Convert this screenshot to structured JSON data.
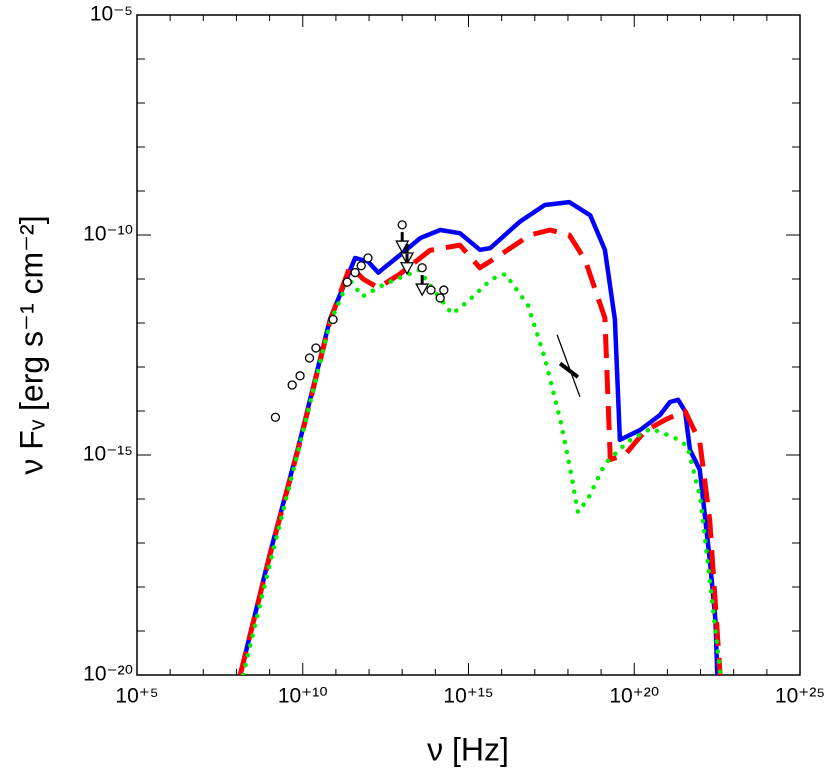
{
  "chart_data": {
    "type": "line",
    "xlabel": "ν [Hz]",
    "ylabel": "ν Fᵥ [erg s⁻¹ cm⁻²]",
    "xscale": "log",
    "yscale": "log",
    "xlim": [
      100000.0,
      1e+25
    ],
    "ylim": [
      1e-20,
      1e-05
    ],
    "xticks": [
      {
        "value": 100000.0,
        "label": "10⁺⁵"
      },
      {
        "value": 10000000000.0,
        "label": "10⁺¹⁰"
      },
      {
        "value": 1000000000000000.0,
        "label": "10⁺¹⁵"
      },
      {
        "value": 1e+20,
        "label": "10⁺²⁰"
      },
      {
        "value": 1e+25,
        "label": "10⁺²⁵"
      }
    ],
    "yticks": [
      {
        "value": 1e-20,
        "label": "10⁻²⁰"
      },
      {
        "value": 1e-15,
        "label": "10⁻¹⁵"
      },
      {
        "value": 1e-10,
        "label": "10⁻¹⁰"
      },
      {
        "value": 1e-05,
        "label": "10⁻⁵"
      }
    ],
    "xminorticks": [
      1000000.0,
      10000000.0,
      100000000.0,
      1000000000.0,
      100000000000.0,
      1000000000000.0,
      10000000000000.0,
      100000000000000.0,
      1e+16,
      1e+17,
      1e+18,
      1e+19,
      1e+21,
      1e+22,
      1e+23,
      1e+24
    ],
    "yminorticks": [
      1e-19,
      1e-18,
      1e-17,
      1e-16,
      1e-14,
      1e-13,
      1e-12,
      1e-11,
      1e-09,
      1e-08,
      1e-07,
      1e-06
    ],
    "series": [
      {
        "color": "#0000ff",
        "style": "solid",
        "x": [
          130000000.0,
          1000000000.0,
          8300000000.0,
          66000000000.0,
          380000000000.0,
          930000000000.0,
          1900000000000.0,
          8500000000000.0,
          35000000000000.0,
          140000000000000.0,
          550000000000000.0,
          2200000000000000.0,
          4500000000000000.0,
          3.5e+16,
          2e+17,
          1.1e+18,
          4.7e+18,
          1.3e+19,
          2.6e+19,
          3.7e+19,
          1.5e+20,
          6e+20,
          1.2e+21,
          2.1e+21,
          3.4e+21,
          4.8e+21,
          9.5e+21,
          1.9e+22,
          2.8e+22,
          3.2e+22
        ],
        "values": [
          1e-20,
          5.4e-18,
          2.2e-15,
          1.2e-12,
          3e-11,
          2.5e-11,
          1.4e-11,
          3.5e-11,
          8.5e-11,
          1.3e-10,
          1.1e-10,
          4.6e-11,
          5e-11,
          2e-10,
          4.8e-10,
          5.6e-10,
          2.8e-10,
          4.6e-11,
          1.2e-12,
          2.2e-15,
          3.7e-15,
          8.1e-15,
          1.6e-14,
          1.8e-14,
          1e-14,
          1.3e-15,
          4.6e-16,
          4.1e-18,
          1.8e-19,
          1e-20
        ]
      },
      {
        "color": "#ff0000",
        "style": "dashed",
        "x": [
          130000000.0,
          1000000000.0,
          8300000000.0,
          66000000000.0,
          270000000000.0,
          660000000000.0,
          1900000000000.0,
          8500000000000.0,
          69000000000000.0,
          550000000000000.0,
          2200000000000000.0,
          8900000000000000.0,
          7.1e+16,
          2.9e+17,
          1.1e+18,
          3.3e+18,
          1.3e+19,
          1.9e+19,
          5.2e+19,
          2.1e+20,
          8.5e+20,
          3.4e+21,
          9.5e+21,
          1.9e+22,
          3.9e+22
        ],
        "values": [
          1e-20,
          5e-18,
          2e-15,
          1.1e-12,
          2e-11,
          1e-11,
          6.3e-12,
          1.3e-11,
          4.5e-11,
          5.9e-11,
          1.8e-11,
          3.5e-11,
          1e-10,
          1.3e-10,
          1e-10,
          2.7e-11,
          1.3e-12,
          7.9e-16,
          1e-15,
          3.5e-15,
          6.3e-15,
          1e-14,
          2e-15,
          3.2e-17,
          1e-20
        ]
      },
      {
        "color": "#00ee00",
        "style": "dotted",
        "x": [
          160000000.0,
          1000000000.0,
          7900000000.0,
          66000000000.0,
          250000000000.0,
          630000000000.0,
          3200000000000.0,
          32000000000000.0,
          100000000000000.0,
          320000000000000.0,
          1000000000000000.0,
          5000000000000000.0,
          1.3e+16,
          6.3e+16,
          2e+17,
          6.3e+17,
          1.3e+18,
          2e+18,
          4e+18,
          1.3e+19,
          6.3e+19,
          3.2e+20,
          1.6e+21,
          4e+21,
          1e+22,
          2e+22,
          4e+22
        ],
        "values": [
          1e-20,
          3.2e-18,
          1.6e-15,
          1e-12,
          1e-11,
          4e-12,
          7.9e-12,
          1.6e-11,
          5e-12,
          1.6e-12,
          3.2e-12,
          1e-11,
          1.3e-11,
          2.5e-12,
          1.6e-13,
          5e-15,
          3.2e-16,
          5e-17,
          1e-16,
          6.3e-16,
          2e-15,
          4e-15,
          2.5e-15,
          1.6e-15,
          1e-16,
          1e-18,
          1e-20
        ]
      }
    ],
    "points": {
      "x": [
        1500000000.0,
        4800000000.0,
        8300000000.0,
        16000000000.0,
        25000000000.0,
        82000000000.0,
        220000000000.0,
        380000000000.0,
        580000000000.0,
        930000000000.0,
        10000000000000.0,
        40000000000000.0,
        74000000000000.0,
        140000000000000.0,
        180000000000000.0
      ],
      "values": [
        7.2e-15,
        3.9e-14,
        6.3e-14,
        1.6e-13,
        2.7e-13,
        1.2e-12,
        8.5e-12,
        1.4e-11,
        2e-11,
        3e-11,
        1.7e-10,
        1.8e-11,
        5.6e-12,
        3.7e-12,
        5.6e-12
      ]
    },
    "upper_limits": {
      "x": [
        10000000000000.0,
        14000000000000.0,
        14000000000000.0,
        40000000000000.0
      ],
      "values": [
        5.6e-11,
        3e-11,
        1.8e-11,
        5.9e-12
      ]
    },
    "bowtie": [
      {
        "x": [
          4.7e+17,
          2.3e+18
        ],
        "values": [
          5.4e-13,
          2.1e-14
        ]
      },
      {
        "x": [
          5.8e+17,
          2e+18
        ],
        "values": [
          1.2e-13,
          5.9e-14
        ]
      }
    ]
  }
}
